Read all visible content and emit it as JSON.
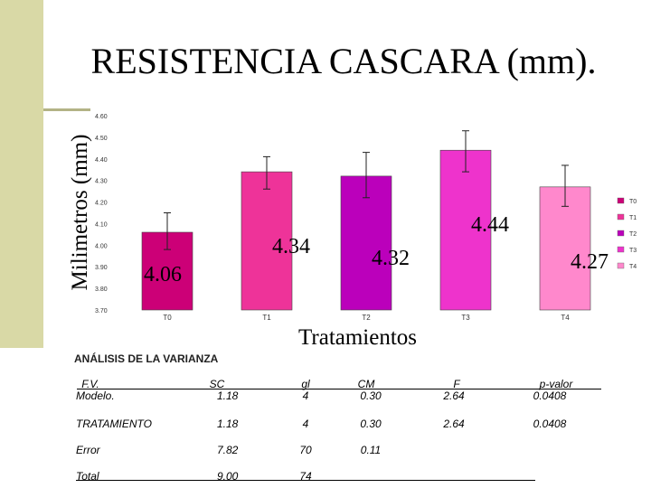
{
  "slide_title": "RESISTENCIA CASCARA (mm).",
  "chart_data": {
    "type": "bar",
    "title": "RESISTENCIA CASCARA (mm).",
    "xlabel": "Tratamientos",
    "ylabel": "Milimetros (mm)",
    "categories": [
      "T0",
      "T1",
      "T2",
      "T3",
      "T4"
    ],
    "values": [
      4.06,
      4.34,
      4.32,
      4.44,
      4.27
    ],
    "value_labels": [
      "4.06",
      "4.34",
      "4.32",
      "4.44",
      "4.27"
    ],
    "error_low": [
      3.98,
      4.26,
      4.22,
      4.34,
      4.18
    ],
    "error_high": [
      4.15,
      4.41,
      4.43,
      4.53,
      4.37
    ],
    "ylim": [
      3.7,
      4.6
    ],
    "yticks": [
      "3.70",
      "3.80",
      "3.90",
      "4.00",
      "4.10",
      "4.20",
      "4.30",
      "4.40",
      "4.50",
      "4.60"
    ],
    "colors": [
      "#cc0077",
      "#ee3399",
      "#bb00bb",
      "#ee33cc",
      "#ff88cc"
    ],
    "legend": [
      "T0",
      "T1",
      "T2",
      "T3",
      "T4"
    ],
    "legend_position": "right",
    "grid": false
  },
  "anova": {
    "title": "ANÁLISIS DE LA VARIANZA",
    "headers": [
      "F.V.",
      "SC",
      "gl",
      "CM",
      "F",
      "p-valor"
    ],
    "rows": [
      [
        "Modelo.",
        "1.18",
        "4",
        "0.30",
        "2.64",
        "0.0408"
      ],
      [
        "TRATAMIENTO",
        "1.18",
        "4",
        "0.30",
        "2.64",
        "0.0408"
      ],
      [
        "Error",
        "7.82",
        "70",
        "0.11",
        "",
        ""
      ],
      [
        "Total",
        "9.00",
        "74",
        "",
        "",
        ""
      ]
    ]
  }
}
